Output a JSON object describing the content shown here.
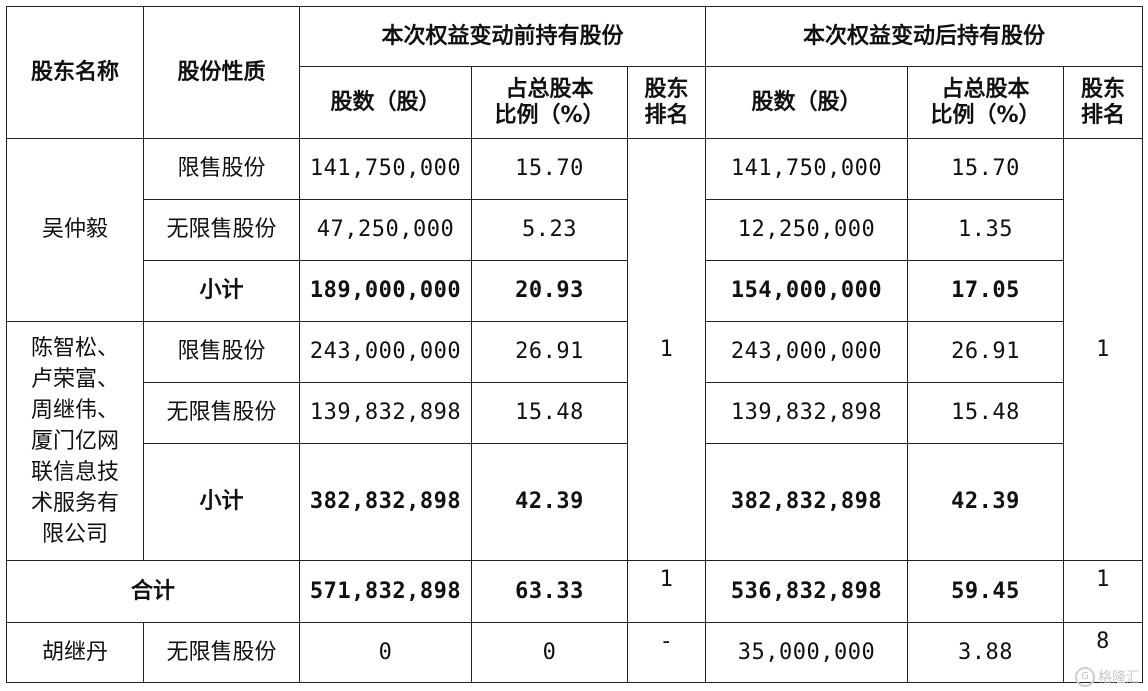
{
  "header": {
    "shareholder_name": "股东名称",
    "share_nature": "股份性质",
    "before_group": "本次权益变动前持有股份",
    "after_group": "本次权益变动后持有股份",
    "shares_label": "股数（股）",
    "ratio_label_line1": "占总股本",
    "ratio_label_line2": "比例（%）",
    "rank_label_line1": "股东",
    "rank_label_line2": "排名"
  },
  "rows": {
    "wu": {
      "name": "吴仲毅",
      "restricted": {
        "label": "限售股份",
        "before_shares": "141,750,000",
        "before_ratio": "15.70",
        "after_shares": "141,750,000",
        "after_ratio": "15.70"
      },
      "unrestricted": {
        "label": "无限售股份",
        "before_shares": "47,250,000",
        "before_ratio": "5.23",
        "after_shares": "12,250,000",
        "after_ratio": "1.35"
      },
      "subtotal": {
        "label": "小计",
        "before_shares": "189,000,000",
        "before_ratio": "20.93",
        "after_shares": "154,000,000",
        "after_ratio": "17.05"
      }
    },
    "group": {
      "name_lines": [
        "陈智松、",
        "卢荣富、",
        "周继伟、",
        "厦门亿网",
        "联信息技",
        "术服务有",
        "限公司"
      ],
      "restricted": {
        "label": "限售股份",
        "before_shares": "243,000,000",
        "before_ratio": "26.91",
        "after_shares": "243,000,000",
        "after_ratio": "26.91"
      },
      "unrestricted": {
        "label": "无限售股份",
        "before_shares": "139,832,898",
        "before_ratio": "15.48",
        "after_shares": "139,832,898",
        "after_ratio": "15.48"
      },
      "subtotal": {
        "label": "小计",
        "before_shares": "382,832,898",
        "before_ratio": "42.39",
        "after_shares": "382,832,898",
        "after_ratio": "42.39"
      }
    },
    "rank_before_merged": "1",
    "rank_after_merged": "1",
    "total": {
      "label": "合计",
      "before_shares": "571,832,898",
      "before_ratio": "63.33",
      "before_rank": "1",
      "after_shares": "536,832,898",
      "after_ratio": "59.45",
      "after_rank": "1"
    },
    "hu": {
      "name": "胡继丹",
      "label": "无限售股份",
      "before_shares": "0",
      "before_ratio": "0",
      "before_rank": "-",
      "after_shares": "35,000,000",
      "after_ratio": "3.88",
      "after_rank": "8"
    }
  },
  "watermark": {
    "icon": "gelonghui-logo-icon",
    "text": "格隆汇"
  }
}
